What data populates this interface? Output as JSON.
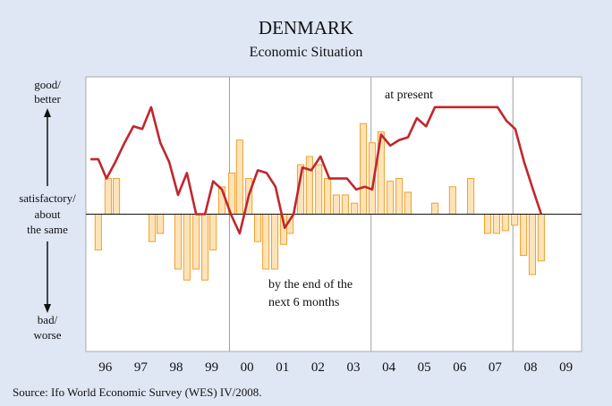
{
  "chart_data": {
    "type": "bar_line",
    "title": "DENMARK",
    "subtitle": "Economic Situation",
    "source": "Source: Ifo World Economic Survey (WES) IV/2008.",
    "y_labels": {
      "top": [
        "good/",
        "better"
      ],
      "middle": [
        "satisfactory/",
        "about",
        "the same"
      ],
      "bottom": [
        "bad/",
        "worse"
      ]
    },
    "annotations": {
      "line": [
        "at present"
      ],
      "bars": [
        "by the end of the",
        "next 6 months"
      ]
    },
    "xlim": [
      1995.95,
      2009.94
    ],
    "ylim": [
      -5,
      5
    ],
    "xticks": [
      {
        "value": 1996.5,
        "label": "96"
      },
      {
        "value": 1997.5,
        "label": "97"
      },
      {
        "value": 1998.5,
        "label": "98"
      },
      {
        "value": 1999.5,
        "label": "99"
      },
      {
        "value": 2000.5,
        "label": "00"
      },
      {
        "value": 2001.5,
        "label": "01"
      },
      {
        "value": 2002.5,
        "label": "02"
      },
      {
        "value": 2003.5,
        "label": "03"
      },
      {
        "value": 2004.5,
        "label": "04"
      },
      {
        "value": 2005.5,
        "label": "05"
      },
      {
        "value": 2006.5,
        "label": "06"
      },
      {
        "value": 2007.5,
        "label": "07"
      },
      {
        "value": 2008.5,
        "label": "08"
      },
      {
        "value": 2009.5,
        "label": "09"
      }
    ],
    "vlines": [
      2000,
      2004,
      2008
    ],
    "series": [
      {
        "type": "bar",
        "color": "#fde3b8",
        "edgecolor": "#f0a030",
        "x": [
          1996.3,
          1996.58,
          1996.81,
          1997.82,
          1998.05,
          1998.55,
          1998.8,
          1999.06,
          1999.31,
          1999.54,
          1999.79,
          2000.07,
          2000.29,
          2000.55,
          2000.8,
          2001.03,
          2001.28,
          2001.53,
          2001.71,
          2002.01,
          2002.26,
          2002.52,
          2002.77,
          2003.02,
          2003.27,
          2003.53,
          2003.78,
          2004.03,
          2004.28,
          2004.54,
          2004.79,
          2005.04,
          2005.8,
          2006.3,
          2006.81,
          2007.29,
          2007.54,
          2007.79,
          2008.05,
          2008.3,
          2008.55,
          2008.8
        ],
        "values": [
          -1.3,
          1.3,
          1.3,
          -1.0,
          -0.7,
          -2.0,
          -2.4,
          -2.0,
          -2.4,
          -1.3,
          1.0,
          1.5,
          2.7,
          1.3,
          -1.0,
          -2.0,
          -2.0,
          -1.1,
          -0.7,
          1.8,
          2.1,
          1.8,
          1.3,
          0.7,
          0.7,
          0.4,
          3.3,
          2.6,
          3.0,
          1.2,
          1.3,
          0.8,
          0.4,
          1.0,
          1.3,
          -0.7,
          -0.7,
          -0.6,
          -0.4,
          -1.5,
          -2.2,
          -1.7
        ]
      },
      {
        "type": "line",
        "color": "#c0272d",
        "x": [
          1996.08,
          1996.3,
          1996.53,
          1996.78,
          1997.04,
          1997.29,
          1997.54,
          1997.79,
          1998.05,
          1998.3,
          1998.55,
          1998.8,
          1999.06,
          1999.31,
          1999.54,
          1999.79,
          2000.04,
          2000.29,
          2000.55,
          2000.8,
          2001.05,
          2001.3,
          2001.56,
          2001.81,
          2002.06,
          2002.31,
          2002.57,
          2002.82,
          2003.07,
          2003.32,
          2003.58,
          2003.83,
          2004.03,
          2004.28,
          2004.54,
          2004.79,
          2005.04,
          2005.29,
          2005.55,
          2005.8,
          2007.57,
          2007.82,
          2008.07,
          2008.32,
          2008.57,
          2008.8
        ],
        "values": [
          2.0,
          2.0,
          1.3,
          1.9,
          2.6,
          3.2,
          3.1,
          3.9,
          2.6,
          1.9,
          0.7,
          1.5,
          0,
          0,
          1.2,
          0.9,
          0,
          -0.7,
          0.7,
          1.6,
          1.5,
          1.0,
          -0.5,
          0,
          1.7,
          1.6,
          2.1,
          1.3,
          1.3,
          1.3,
          0.9,
          1.0,
          0.9,
          2.9,
          2.5,
          2.7,
          2.8,
          3.5,
          3.2,
          3.9,
          3.9,
          3.4,
          3.1,
          1.9,
          0.9,
          0
        ]
      }
    ]
  }
}
